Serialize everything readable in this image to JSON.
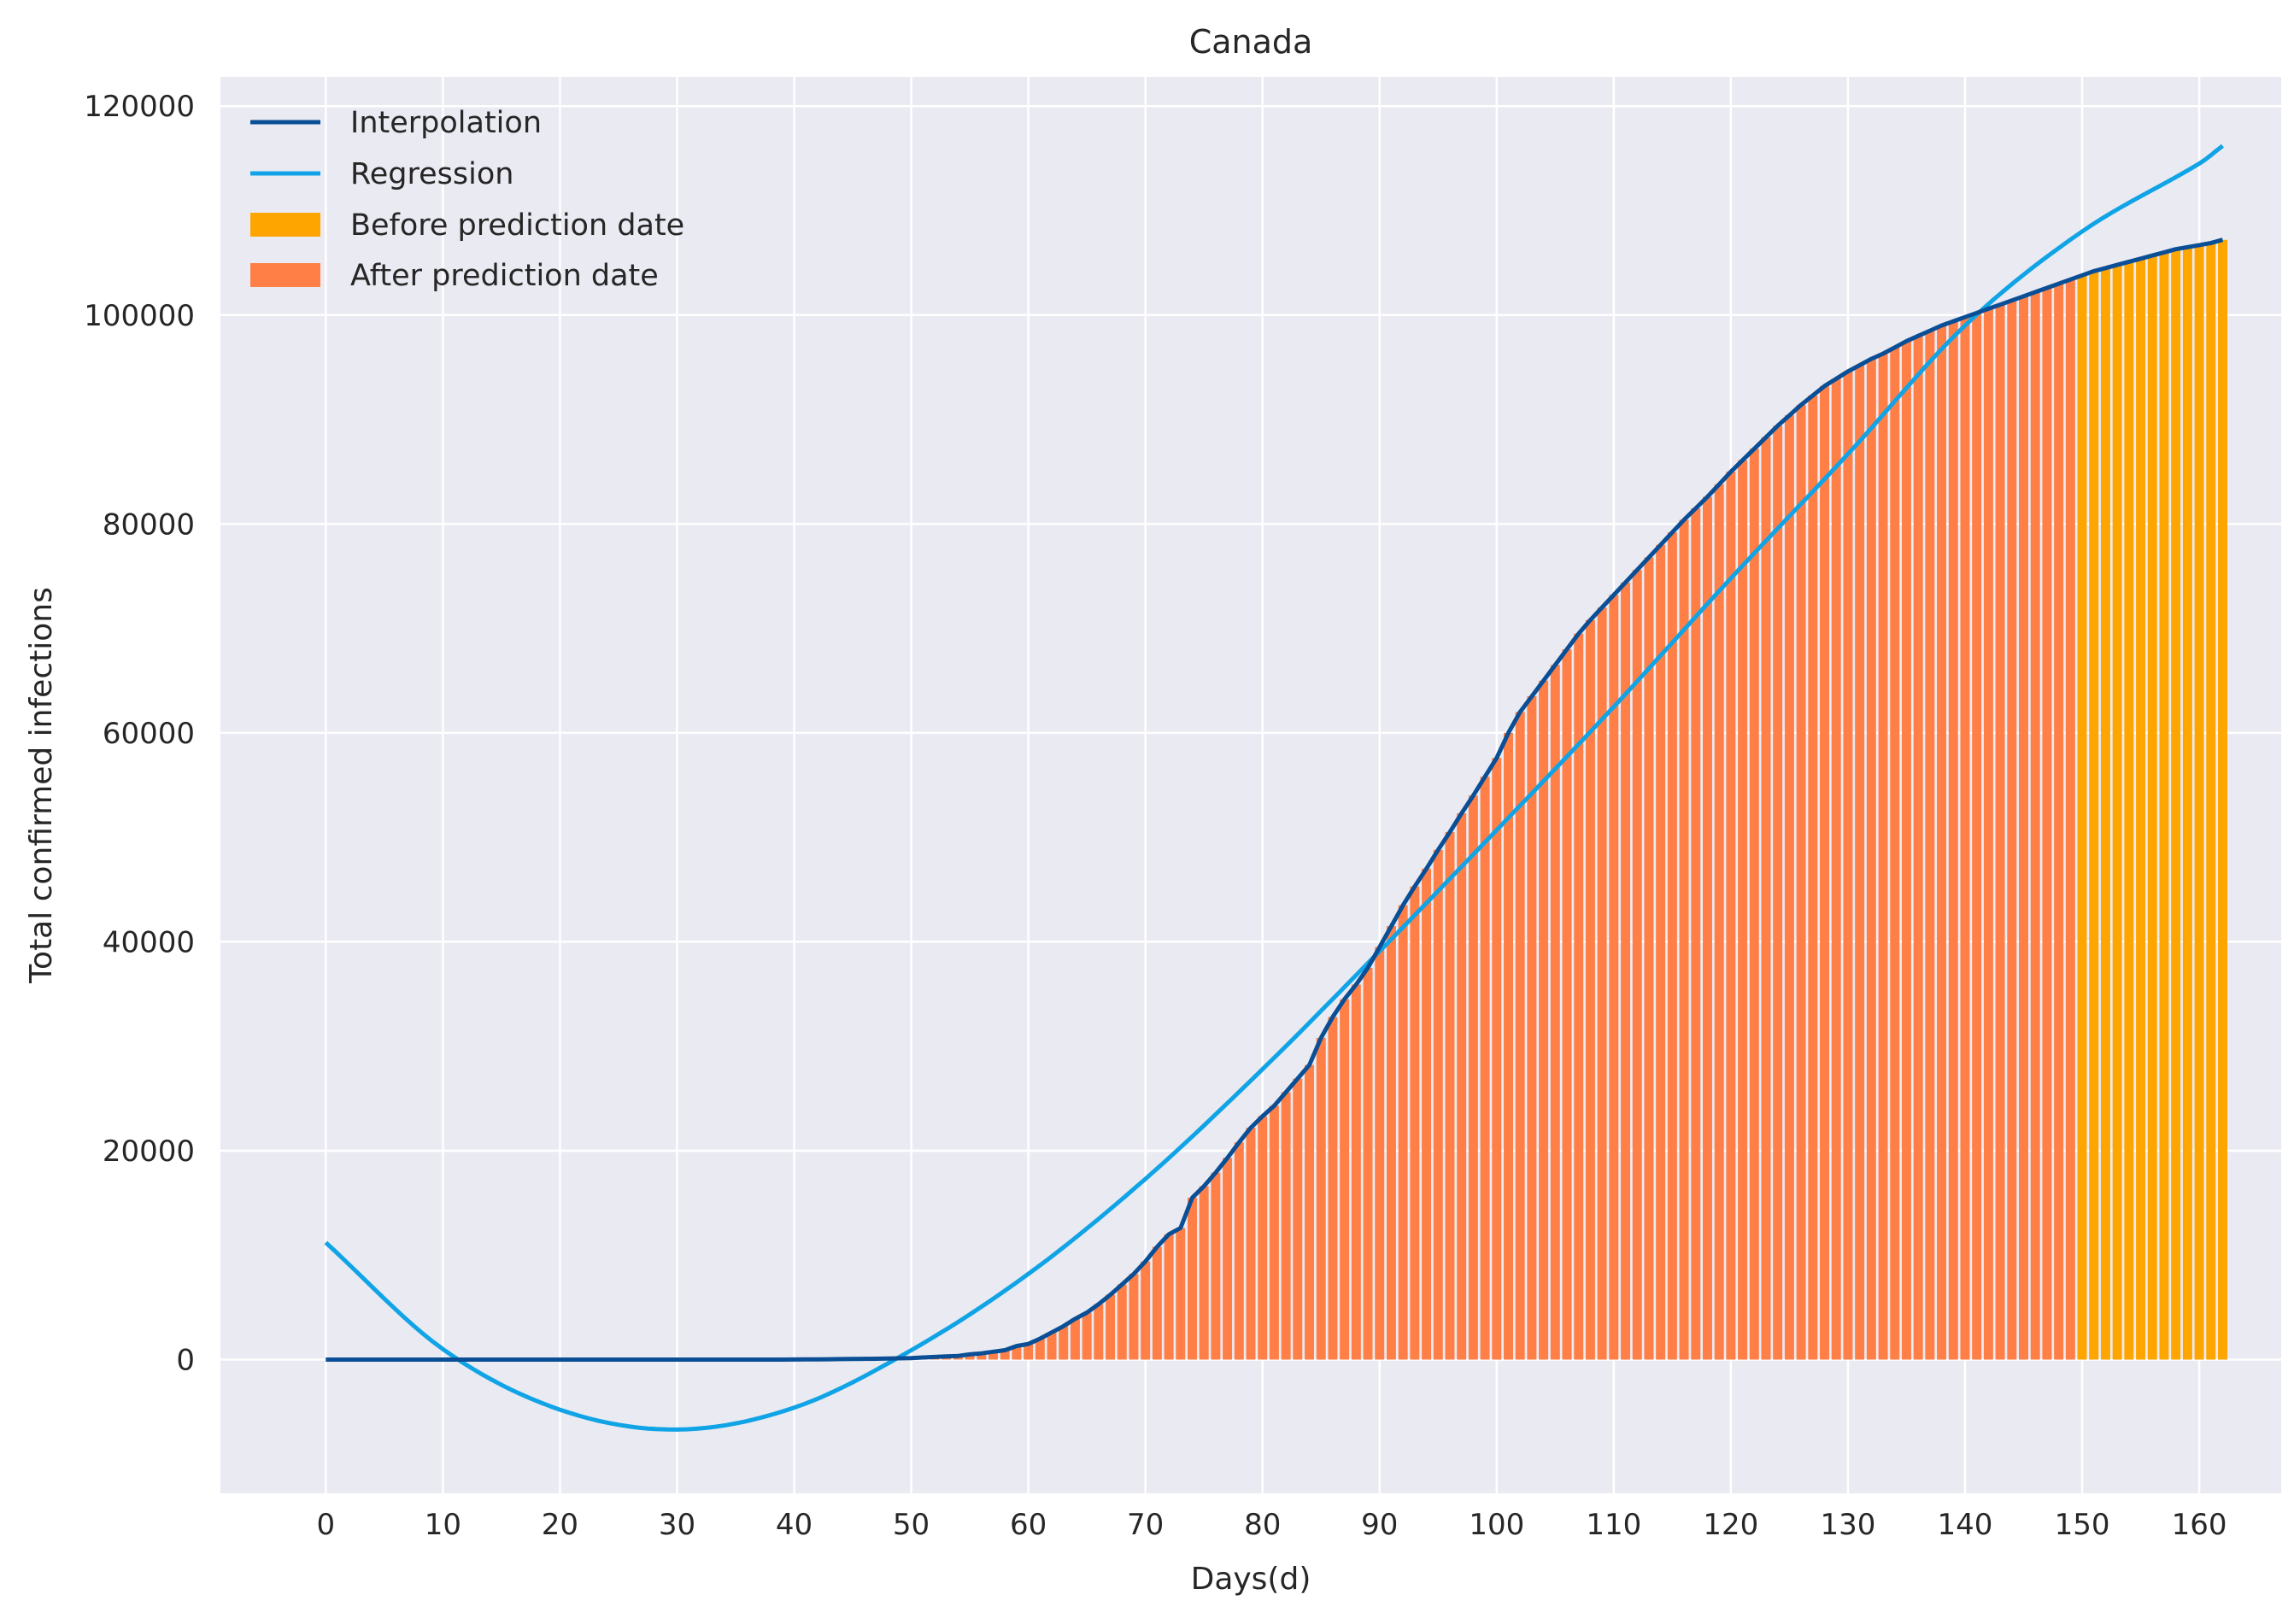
{
  "chart_data": {
    "type": "bar",
    "title": "Canada",
    "xlabel": "Days(d)",
    "ylabel": "Total confirmed infections",
    "xlim": [
      -9,
      167
    ],
    "ylim": [
      -12800,
      122800
    ],
    "x_ticks": [
      0,
      10,
      20,
      30,
      40,
      50,
      60,
      70,
      80,
      90,
      100,
      110,
      120,
      130,
      140,
      150,
      160
    ],
    "y_ticks": [
      0,
      20000,
      40000,
      60000,
      80000,
      100000,
      120000
    ],
    "grid": true,
    "legend_position": "top-left",
    "prediction_day": 150,
    "series": [
      {
        "name": "Interpolation",
        "kind": "line",
        "color": "#0a4f96"
      },
      {
        "name": "Regression",
        "kind": "line",
        "color": "#10a4e6"
      },
      {
        "name": "Before prediction date",
        "kind": "bar",
        "color": "#ffa500"
      },
      {
        "name": "After prediction date",
        "kind": "bar",
        "color": "#ff7f46"
      }
    ],
    "infections_by_day": [
      0,
      0,
      0,
      0,
      0,
      0,
      0,
      0,
      0,
      0,
      0,
      0,
      0,
      0,
      0,
      0,
      0,
      0,
      0,
      0,
      0,
      0,
      0,
      0,
      0,
      0,
      0,
      0,
      0,
      0,
      0,
      0,
      0,
      0,
      0,
      0,
      0,
      0,
      0,
      0,
      10,
      20,
      25,
      35,
      45,
      55,
      70,
      85,
      105,
      120,
      150,
      200,
      250,
      300,
      350,
      500,
      600,
      750,
      900,
      1300,
      1500,
      2000,
      2600,
      3200,
      3900,
      4500,
      5300,
      6200,
      7200,
      8200,
      9400,
      10800,
      12000,
      12600,
      15500,
      16600,
      17900,
      19300,
      20800,
      22200,
      23300,
      24300,
      25600,
      26900,
      28200,
      30800,
      32800,
      34500,
      35900,
      37500,
      39500,
      41500,
      43500,
      45300,
      47000,
      48800,
      50500,
      52300,
      54000,
      55800,
      57600,
      60000,
      62000,
      63500,
      65000,
      66500,
      68000,
      69500,
      70800,
      72000,
      73200,
      74400,
      75600,
      76800,
      78000,
      79200,
      80400,
      81500,
      82600,
      83800,
      85000,
      86100,
      87200,
      88300,
      89400,
      90400,
      91400,
      92300,
      93200,
      93900,
      94600,
      95200,
      95800,
      96300,
      96900,
      97500,
      98000,
      98500,
      99000,
      99400,
      99800,
      100200,
      100600,
      101000,
      101400,
      101800,
      102200,
      102600,
      103000,
      103400,
      103800,
      104200,
      104500,
      104800,
      105100,
      105400,
      105700,
      106000,
      106300,
      106500,
      106700,
      106900,
      107200
    ],
    "regression": {
      "days": [
        0,
        10,
        20,
        30,
        40,
        50,
        60,
        70,
        80,
        90,
        100,
        110,
        120,
        130,
        140,
        150,
        160,
        162
      ],
      "values": [
        11200,
        1000,
        -4800,
        -6700,
        -4600,
        900,
        8200,
        17300,
        27800,
        39100,
        50700,
        62500,
        74800,
        86700,
        99000,
        108000,
        114500,
        116200
      ]
    }
  }
}
